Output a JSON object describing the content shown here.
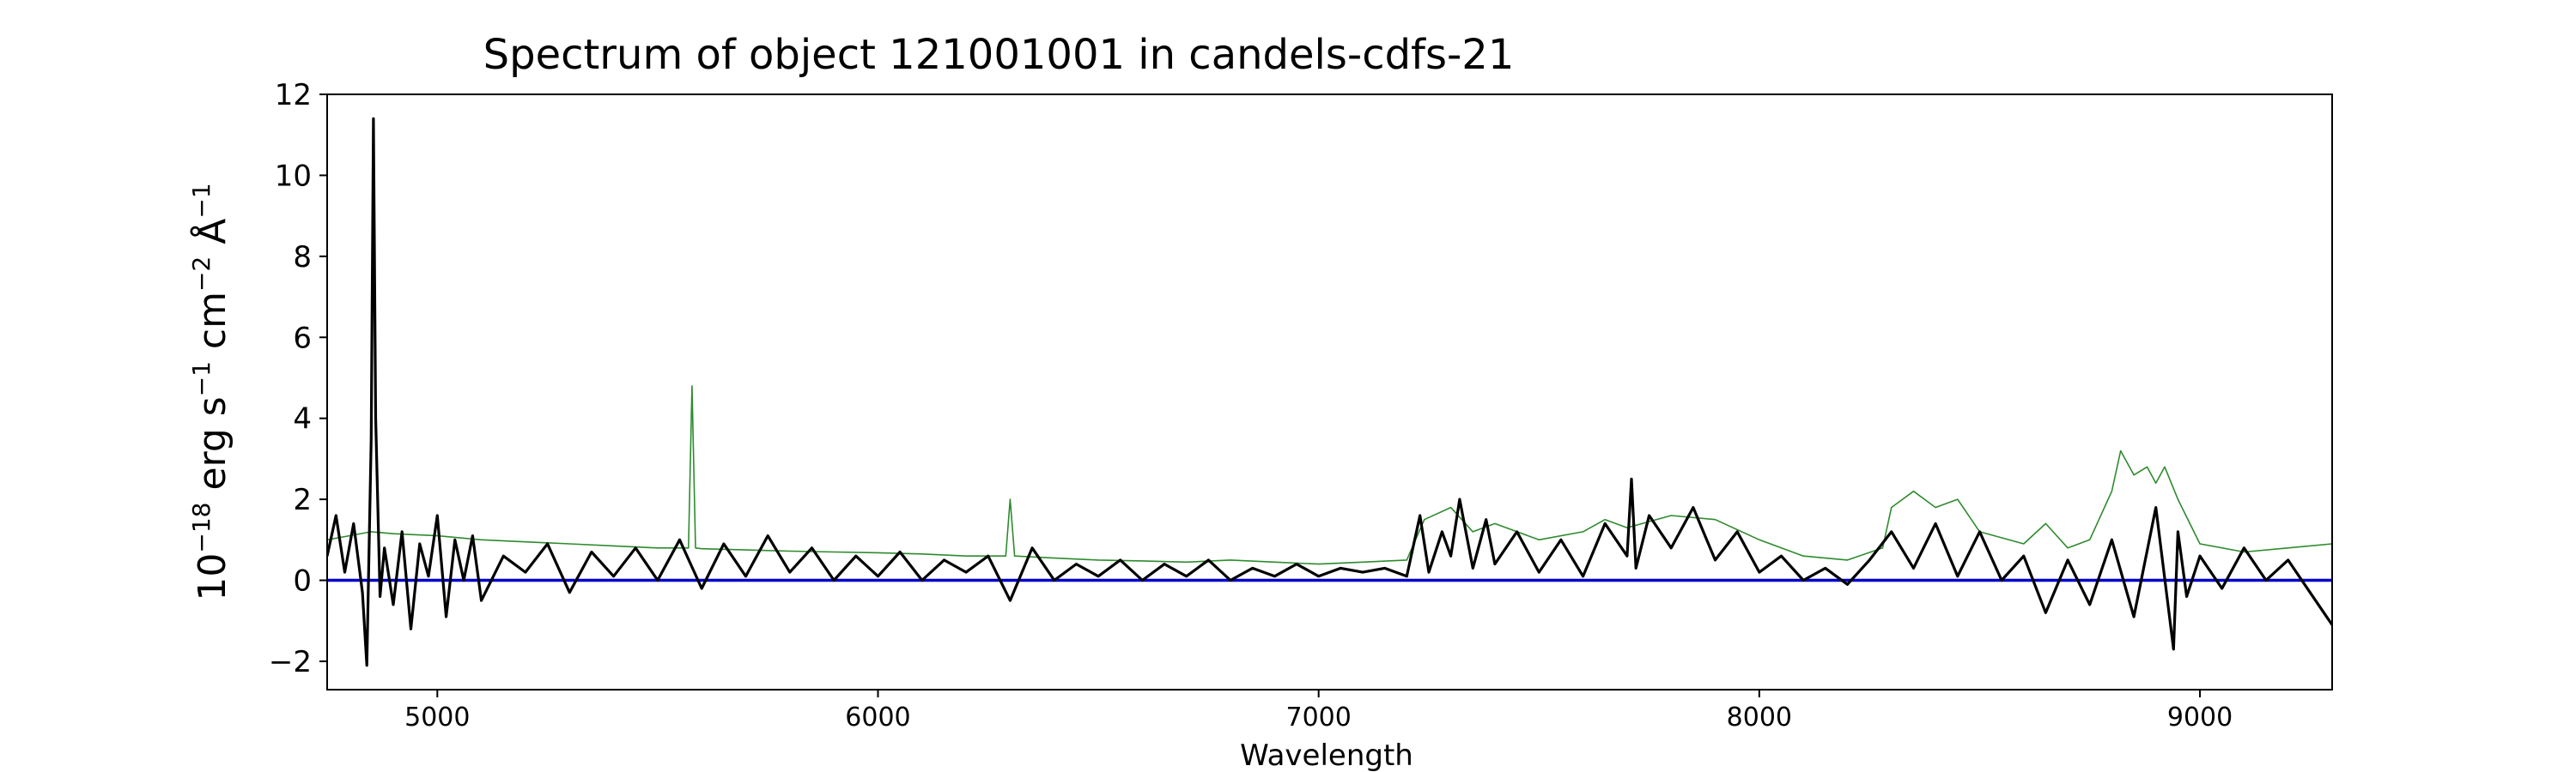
{
  "chart_data": {
    "type": "line",
    "title": "Spectrum of object 121001001 in candels-cdfs-21",
    "xlabel": "Wavelength",
    "ylabel": {
      "base": "10",
      "exp_base": "−18",
      "unit1": " erg s",
      "exp1": "−1",
      "unit2": " cm",
      "exp2": "−2",
      "unit3": " Å",
      "exp3": "−1"
    },
    "xlim": [
      4750,
      9300
    ],
    "ylim": [
      -2.7,
      12
    ],
    "xticks": [
      5000,
      6000,
      7000,
      8000,
      9000
    ],
    "xtick_labels": [
      "5000",
      "6000",
      "7000",
      "8000",
      "9000"
    ],
    "yticks": [
      -2,
      0,
      2,
      4,
      6,
      8,
      10,
      12
    ],
    "ytick_labels": [
      "−2",
      "0",
      "2",
      "4",
      "6",
      "8",
      "10",
      "12"
    ],
    "grid": false,
    "series": [
      {
        "role": "model",
        "color": "#0000cc",
        "x": [
          4750,
          9300
        ],
        "y": [
          0.0,
          0.0
        ]
      },
      {
        "role": "noise",
        "color": "#2e8b2e",
        "x": [
          4750,
          4800,
          4850,
          4900,
          5000,
          5100,
          5200,
          5300,
          5400,
          5500,
          5570,
          5578,
          5586,
          5600,
          5700,
          5800,
          5900,
          6000,
          6100,
          6200,
          6290,
          6300,
          6310,
          6400,
          6500,
          6600,
          6700,
          6800,
          6900,
          7000,
          7100,
          7200,
          7240,
          7300,
          7350,
          7400,
          7500,
          7600,
          7650,
          7700,
          7800,
          7900,
          8000,
          8100,
          8200,
          8280,
          8300,
          8350,
          8400,
          8450,
          8500,
          8600,
          8650,
          8700,
          8750,
          8800,
          8820,
          8850,
          8880,
          8900,
          8920,
          8950,
          9000,
          9100,
          9200,
          9300
        ],
        "y": [
          1.0,
          1.1,
          1.2,
          1.15,
          1.1,
          1.0,
          0.95,
          0.9,
          0.85,
          0.8,
          0.8,
          4.8,
          0.8,
          0.78,
          0.75,
          0.72,
          0.7,
          0.68,
          0.65,
          0.6,
          0.6,
          2.0,
          0.6,
          0.55,
          0.5,
          0.48,
          0.45,
          0.5,
          0.45,
          0.4,
          0.45,
          0.5,
          1.5,
          1.8,
          1.2,
          1.4,
          1.0,
          1.2,
          1.5,
          1.3,
          1.6,
          1.5,
          1.0,
          0.6,
          0.5,
          0.8,
          1.8,
          2.2,
          1.8,
          2.0,
          1.2,
          0.9,
          1.4,
          0.8,
          1.0,
          2.2,
          3.2,
          2.6,
          2.8,
          2.4,
          2.8,
          2.0,
          0.9,
          0.7,
          0.8,
          0.9
        ]
      },
      {
        "role": "spectrum",
        "color": "#000000",
        "x": [
          4750,
          4770,
          4790,
          4810,
          4830,
          4840,
          4850,
          4855,
          4860,
          4870,
          4880,
          4900,
          4920,
          4940,
          4960,
          4980,
          5000,
          5020,
          5040,
          5060,
          5080,
          5100,
          5150,
          5200,
          5250,
          5300,
          5350,
          5400,
          5450,
          5500,
          5550,
          5600,
          5650,
          5700,
          5750,
          5800,
          5850,
          5900,
          5950,
          6000,
          6050,
          6100,
          6150,
          6200,
          6250,
          6300,
          6350,
          6400,
          6450,
          6500,
          6550,
          6600,
          6650,
          6700,
          6750,
          6800,
          6850,
          6900,
          6950,
          7000,
          7050,
          7100,
          7150,
          7200,
          7230,
          7250,
          7280,
          7300,
          7320,
          7350,
          7380,
          7400,
          7450,
          7500,
          7550,
          7600,
          7650,
          7700,
          7710,
          7720,
          7750,
          7800,
          7850,
          7900,
          7950,
          8000,
          8050,
          8100,
          8150,
          8200,
          8250,
          8300,
          8350,
          8400,
          8450,
          8500,
          8550,
          8600,
          8650,
          8700,
          8750,
          8800,
          8850,
          8900,
          8940,
          8950,
          8970,
          9000,
          9050,
          9100,
          9150,
          9200,
          9250,
          9300
        ],
        "y": [
          0.6,
          1.6,
          0.2,
          1.4,
          -0.3,
          -2.1,
          3.5,
          11.4,
          4.0,
          -0.4,
          0.8,
          -0.6,
          1.2,
          -1.2,
          0.9,
          0.1,
          1.6,
          -0.9,
          1.0,
          0.0,
          1.1,
          -0.5,
          0.6,
          0.2,
          0.9,
          -0.3,
          0.7,
          0.1,
          0.8,
          0.0,
          1.0,
          -0.2,
          0.9,
          0.1,
          1.1,
          0.2,
          0.8,
          0.0,
          0.6,
          0.1,
          0.7,
          0.0,
          0.5,
          0.2,
          0.6,
          -0.5,
          0.8,
          0.0,
          0.4,
          0.1,
          0.5,
          0.0,
          0.4,
          0.1,
          0.5,
          0.0,
          0.3,
          0.1,
          0.4,
          0.1,
          0.3,
          0.2,
          0.3,
          0.1,
          1.6,
          0.2,
          1.2,
          0.6,
          2.0,
          0.3,
          1.5,
          0.4,
          1.2,
          0.2,
          1.0,
          0.1,
          1.4,
          0.6,
          2.5,
          0.3,
          1.6,
          0.8,
          1.8,
          0.5,
          1.2,
          0.2,
          0.6,
          0.0,
          0.3,
          -0.1,
          0.5,
          1.2,
          0.3,
          1.4,
          0.1,
          1.2,
          0.0,
          0.6,
          -0.8,
          0.5,
          -0.6,
          1.0,
          -0.9,
          1.8,
          -1.7,
          1.2,
          -0.4,
          0.6,
          -0.2,
          0.8,
          0.0,
          0.5,
          -0.3,
          -1.1
        ]
      }
    ]
  }
}
